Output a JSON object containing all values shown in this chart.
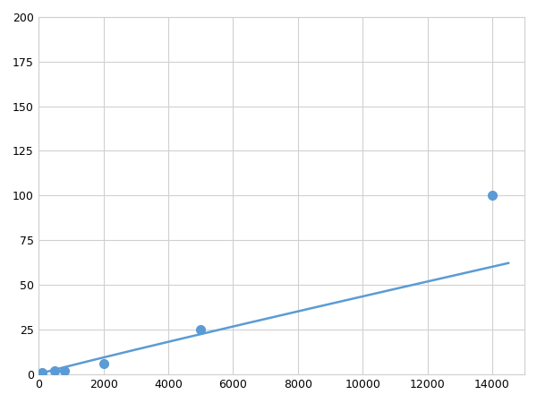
{
  "x_points": [
    100,
    500,
    800,
    2000,
    5000,
    14000
  ],
  "y_points": [
    1,
    2,
    2,
    6,
    25,
    100
  ],
  "xlim": [
    0,
    15000
  ],
  "ylim": [
    0,
    200
  ],
  "xticks": [
    0,
    2000,
    4000,
    6000,
    8000,
    10000,
    12000,
    14000
  ],
  "yticks": [
    0,
    25,
    50,
    75,
    100,
    125,
    150,
    175,
    200
  ],
  "line_color": "#5b9bd5",
  "marker_color": "#5b9bd5",
  "bg_color": "#ffffff",
  "grid_color": "#d0d0d0",
  "marker_size": 7,
  "line_width": 1.8,
  "power_a": 0.00012,
  "power_b": 1.47
}
